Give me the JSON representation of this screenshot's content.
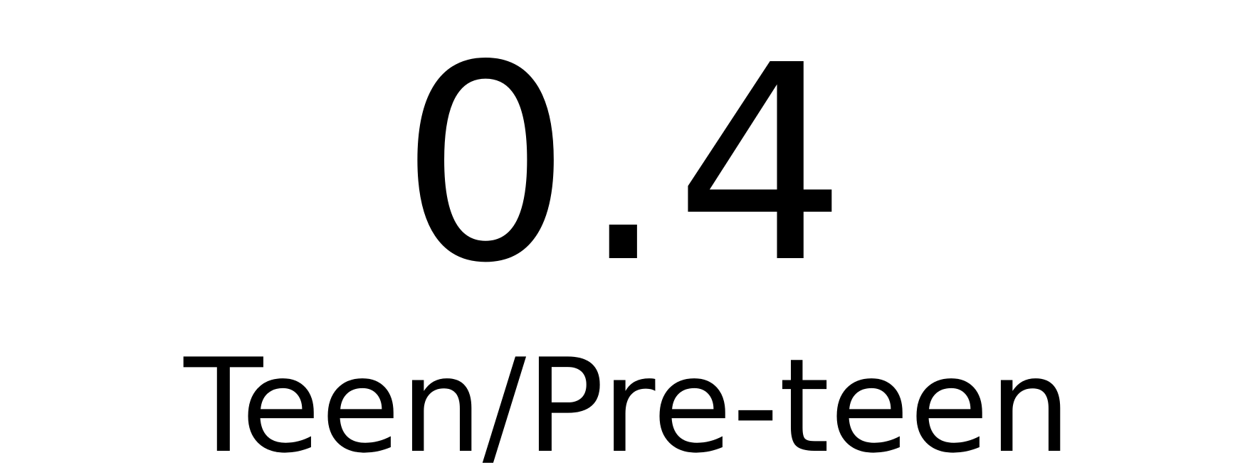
{
  "chart_data": {
    "type": "table",
    "value": 0.4,
    "value_text": "0.4",
    "label": "Teen/Pre-teen",
    "text_color": "#000000",
    "background": "#ffffff"
  }
}
